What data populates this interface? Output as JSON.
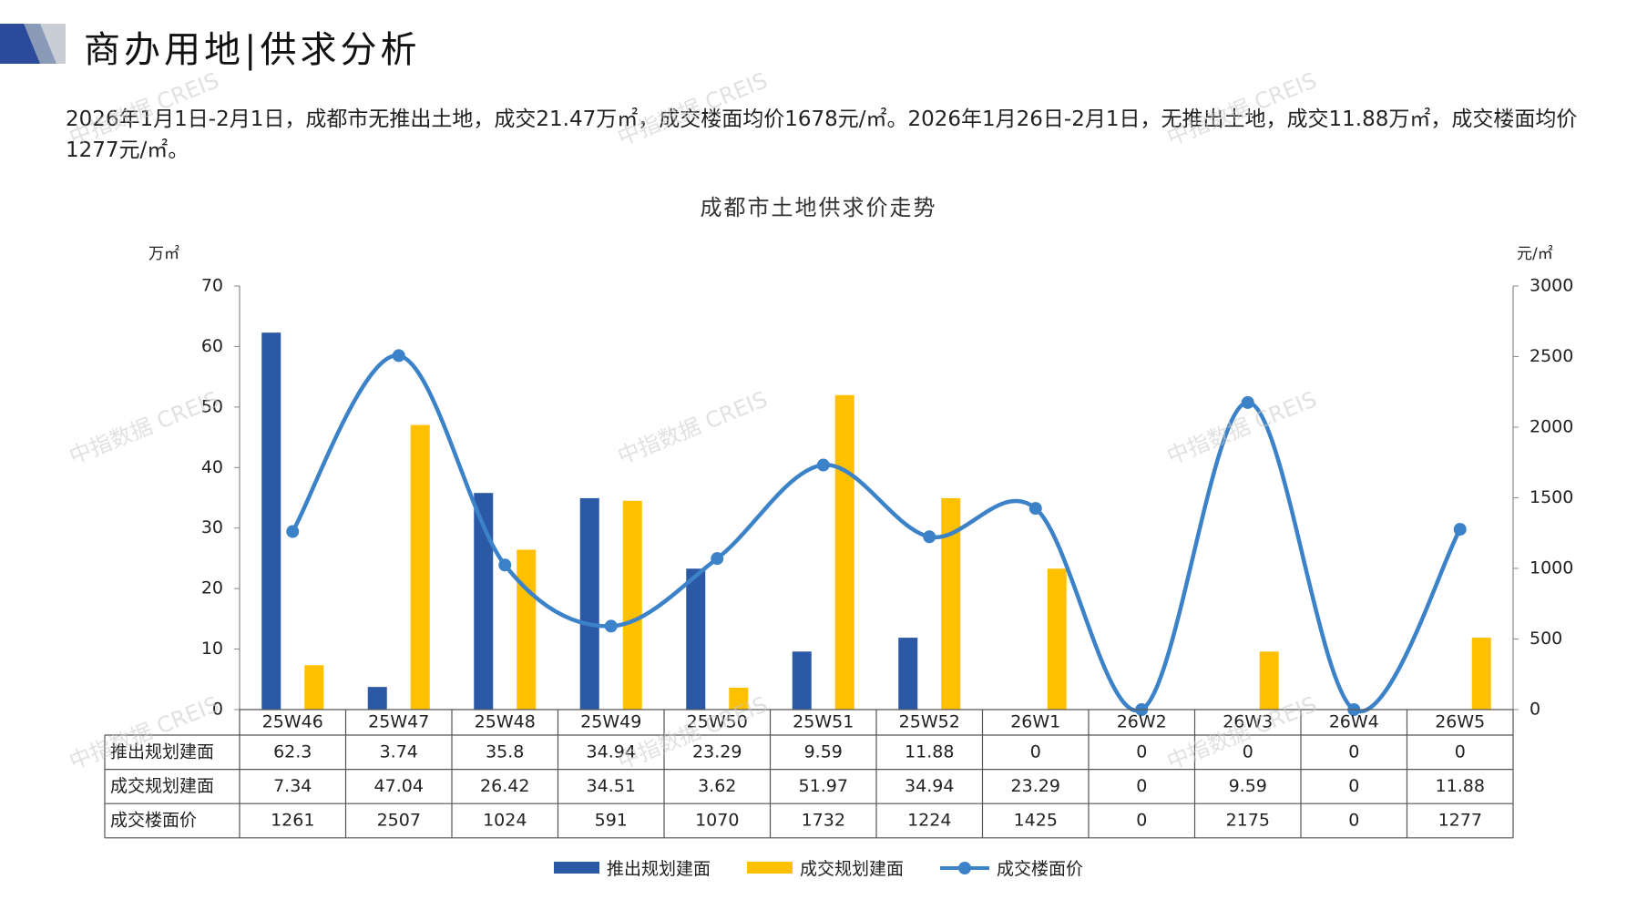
{
  "header": {
    "title": "商办用地|供求分析"
  },
  "summary": "2026年1月1日-2月1日，成都市无推出土地，成交21.47万㎡，成交楼面均价1678元/㎡。2026年1月26日-2月1日，无推出土地，成交11.88万㎡，成交楼面均价1277元/㎡。",
  "watermark": "中指数据 CREIS",
  "colors": {
    "supply": "#2b59a6",
    "deal": "#ffc000",
    "price": "#3c82c8"
  },
  "chart_data": {
    "type": "bar",
    "title": "成都市土地供求价走势",
    "ylabel_left": "万㎡",
    "ylabel_right": "元/㎡",
    "ylim_left": [
      0,
      70
    ],
    "yticks_left": [
      0,
      10,
      20,
      30,
      40,
      50,
      60,
      70
    ],
    "ylim_right": [
      0,
      3000
    ],
    "yticks_right": [
      0,
      500,
      1000,
      1500,
      2000,
      2500,
      3000
    ],
    "categories": [
      "25W46",
      "25W47",
      "25W48",
      "25W49",
      "25W50",
      "25W51",
      "25W52",
      "26W1",
      "26W2",
      "26W3",
      "26W4",
      "26W5"
    ],
    "series": [
      {
        "name": "推出规划建面",
        "type": "bar",
        "axis": "left",
        "values": [
          62.3,
          3.74,
          35.8,
          34.94,
          23.29,
          9.59,
          11.88,
          0,
          0,
          0,
          0,
          0
        ],
        "labels": [
          "62.3",
          "3.74",
          "35.8",
          "34.94",
          "23.29",
          "9.59",
          "11.88",
          "0",
          "0",
          "0",
          "0",
          "0"
        ]
      },
      {
        "name": "成交规划建面",
        "type": "bar",
        "axis": "left",
        "values": [
          7.34,
          47.04,
          26.42,
          34.51,
          3.62,
          51.97,
          34.94,
          23.29,
          0,
          9.59,
          0,
          11.88
        ],
        "labels": [
          "7.34",
          "47.04",
          "26.42",
          "34.51",
          "3.62",
          "51.97",
          "34.94",
          "23.29",
          "0",
          "9.59",
          "0",
          "11.88"
        ]
      },
      {
        "name": "成交楼面价",
        "type": "line",
        "axis": "right",
        "values": [
          1261,
          2507,
          1024,
          591,
          1070,
          1732,
          1224,
          1425,
          0,
          2175,
          0,
          1277
        ],
        "labels": [
          "1261",
          "2507",
          "1024",
          "591",
          "1070",
          "1732",
          "1224",
          "1425",
          "0",
          "2175",
          "0",
          "1277"
        ]
      }
    ],
    "legend_position": "bottom",
    "grid": false
  }
}
